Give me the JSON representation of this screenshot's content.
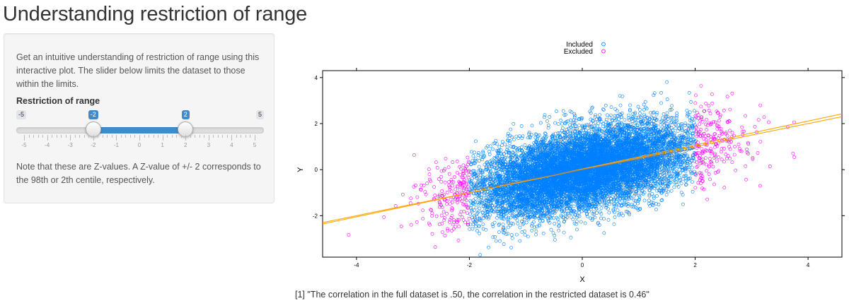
{
  "app": {
    "title": "Understanding restriction of range"
  },
  "sidebar": {
    "intro": "Get an intuitive understanding of restriction of range using this interactive plot. The slider below limits the dataset to those within the limits.",
    "slider": {
      "label": "Restriction of range",
      "min": -5,
      "max": 5,
      "min_label": "-5",
      "max_label": "5",
      "from": -2,
      "to": 2,
      "from_label": "-2",
      "to_label": "2",
      "grid_labels": [
        "-5",
        "-4",
        "-3",
        "-2",
        "-1",
        "0",
        "1",
        "2",
        "3",
        "4",
        "5"
      ],
      "accent": "#428bca"
    },
    "note": "Note that these are Z-values. A Z-value of +/- 2 corresponds to the 98th or 2th centile, respectively."
  },
  "chart_data": {
    "type": "scatter",
    "xlabel": "X",
    "ylabel": "Y",
    "xlim": [
      -4.6,
      4.6
    ],
    "ylim": [
      -3.8,
      4.3
    ],
    "x_ticks": [
      -4,
      -2,
      0,
      2,
      4
    ],
    "y_ticks": [
      -2,
      0,
      2,
      4
    ],
    "x_tick_labels": [
      "-4",
      "-2",
      "0",
      "2",
      "4"
    ],
    "y_tick_labels": [
      "-2",
      "0",
      "2",
      "4"
    ],
    "grid": false,
    "legend_position": "top",
    "marker": "open-circle",
    "n_points_approx": 10000,
    "point_distribution": {
      "x_mean": 0,
      "x_sd": 1,
      "y_mean": 0,
      "y_sd": 1,
      "correlation": 0.5
    },
    "series": [
      {
        "name": "Included",
        "color": "#0080ff",
        "x_range": [
          -2,
          2
        ],
        "fit_line": {
          "slope": 0.46,
          "intercept": 0,
          "color": "#7f7f7f"
        }
      },
      {
        "name": "Excluded",
        "color": "#ff00ff",
        "fit_line": {
          "slope": 0.5,
          "intercept": 0,
          "color": "#ffa500"
        }
      }
    ],
    "extra_line": {
      "slope": 0.52,
      "intercept": 0.03,
      "color": "#ffa500"
    }
  },
  "output": {
    "text": "[1] \"The correlation in the full dataset is .50, the correlation in the restricted dataset is 0.46\""
  }
}
